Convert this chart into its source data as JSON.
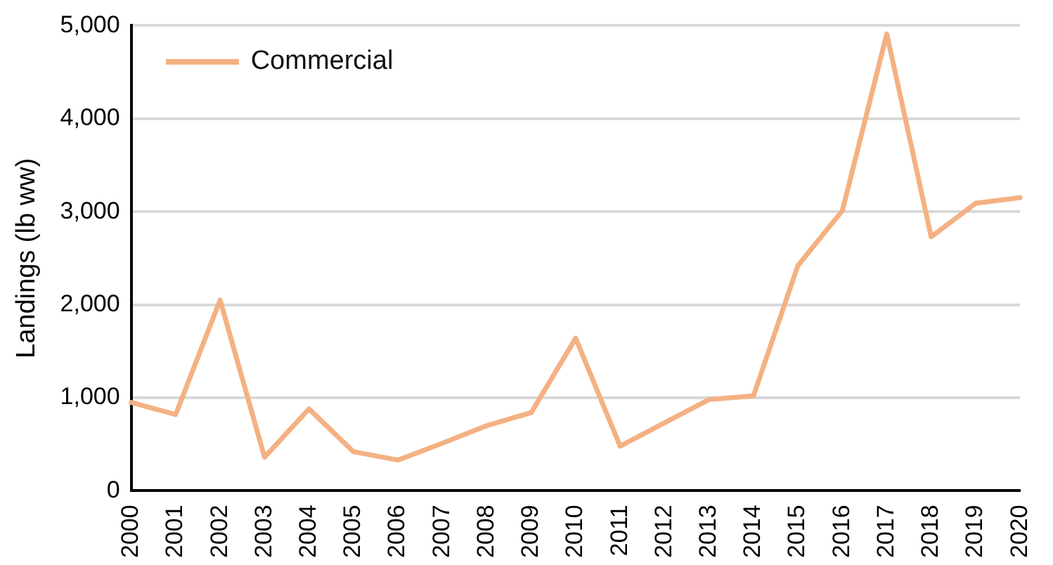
{
  "chart_data": {
    "type": "line",
    "ylabel": "Landings (lb ww)",
    "categories": [
      "2000",
      "2001",
      "2002",
      "2003",
      "2004",
      "2005",
      "2006",
      "2007",
      "2008",
      "2009",
      "2010",
      "2011",
      "2012",
      "2013",
      "2014",
      "2015",
      "2016",
      "2017",
      "2018",
      "2019",
      "2020"
    ],
    "series": [
      {
        "name": "Commercial",
        "color": "#f4b183",
        "values": [
          950,
          820,
          2050,
          360,
          880,
          420,
          330,
          510,
          700,
          840,
          1640,
          480,
          730,
          980,
          1020,
          2420,
          3010,
          4910,
          2730,
          3090,
          3150
        ]
      }
    ],
    "ylim": [
      0,
      5000
    ],
    "yticks": [
      0,
      {
        "value": 1000,
        "label": "1,000"
      },
      {
        "value": 2000,
        "label": "2,000"
      },
      {
        "value": 3000,
        "label": "3,000"
      },
      {
        "value": 4000,
        "label": "4,000"
      },
      {
        "value": 5000,
        "label": "5,000"
      }
    ],
    "grid": "y",
    "legend": "top left",
    "marker": "none",
    "line_style": "solid"
  }
}
